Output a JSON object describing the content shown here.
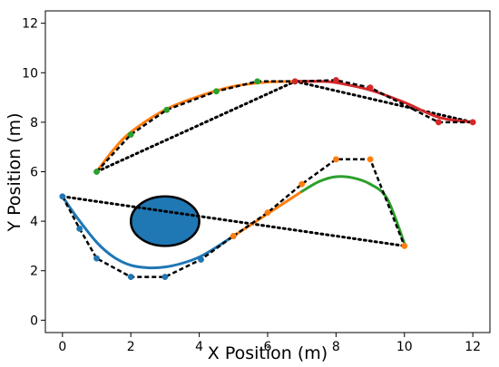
{
  "chart_data": {
    "type": "line",
    "title": "",
    "xlabel": "X Position (m)",
    "ylabel": "Y Position (m)",
    "xlim": [
      -0.5,
      12.5
    ],
    "ylim": [
      -0.5,
      12.5
    ],
    "xticks": [
      0,
      2,
      4,
      6,
      8,
      10,
      12
    ],
    "yticks": [
      0,
      2,
      4,
      6,
      8,
      10,
      12
    ],
    "grid": false,
    "legend": "none",
    "obstacle": {
      "shape": "ellipse",
      "cx": 3.0,
      "cy": 4.0,
      "rx": 1.0,
      "ry": 1.0,
      "color": "#1f77b4"
    },
    "straight_paths": [
      {
        "color": "#000000",
        "style": "dotted",
        "points": [
          [
            0,
            5
          ],
          [
            10,
            3
          ]
        ]
      },
      {
        "color": "#000000",
        "style": "dotted",
        "points": [
          [
            1,
            6
          ],
          [
            6.8,
            9.65
          ],
          [
            12,
            8
          ]
        ]
      }
    ],
    "control_polygons": [
      {
        "color": "#1f77b4",
        "points": [
          [
            0,
            5
          ],
          [
            0.5,
            3.7
          ],
          [
            1,
            2.5
          ],
          [
            2,
            1.75
          ],
          [
            3,
            1.75
          ],
          [
            4.05,
            2.45
          ],
          [
            5,
            3.4
          ]
        ]
      },
      {
        "color": "#ff7f0e",
        "points": [
          [
            5,
            3.4
          ],
          [
            6,
            4.35
          ],
          [
            7,
            5.5
          ],
          [
            8,
            6.5
          ],
          [
            9,
            6.5
          ],
          [
            10,
            3
          ]
        ]
      },
      {
        "color": "#2ca02c",
        "points": [
          [
            1,
            6
          ],
          [
            2,
            7.5
          ],
          [
            3.05,
            8.5
          ],
          [
            4.5,
            9.25
          ],
          [
            5.7,
            9.65
          ],
          [
            6.8,
            9.65
          ]
        ]
      },
      {
        "color": "#d62728",
        "points": [
          [
            6.8,
            9.65
          ],
          [
            8,
            9.7
          ],
          [
            9,
            9.4
          ],
          [
            11,
            8
          ],
          [
            12,
            8
          ]
        ]
      }
    ],
    "series": [
      {
        "color": "#1f77b4",
        "points": [
          [
            0,
            5
          ],
          [
            0.4,
            4.2
          ],
          [
            1,
            3.15
          ],
          [
            1.5,
            2.55
          ],
          [
            2,
            2.22
          ],
          [
            2.5,
            2.12
          ],
          [
            3,
            2.15
          ],
          [
            3.5,
            2.3
          ],
          [
            4,
            2.55
          ],
          [
            4.5,
            2.95
          ],
          [
            5,
            3.4
          ]
        ]
      },
      {
        "color": "#ff7f0e",
        "points": [
          [
            5,
            3.4
          ],
          [
            5.5,
            3.85
          ],
          [
            6,
            4.3
          ],
          [
            6.5,
            4.75
          ],
          [
            7,
            5.2
          ]
        ]
      },
      {
        "color": "#2ca02c",
        "points": [
          [
            7,
            5.2
          ],
          [
            7.5,
            5.6
          ],
          [
            8,
            5.8
          ],
          [
            8.5,
            5.75
          ],
          [
            9,
            5.5
          ],
          [
            9.5,
            4.9
          ],
          [
            10,
            3.1
          ]
        ]
      },
      {
        "color": "#ff7f0e",
        "points": [
          [
            1,
            6
          ],
          [
            1.5,
            6.9
          ],
          [
            2,
            7.6
          ],
          [
            3,
            8.5
          ],
          [
            4,
            9.05
          ],
          [
            5,
            9.45
          ],
          [
            6,
            9.62
          ],
          [
            6.8,
            9.65
          ]
        ]
      },
      {
        "color": "#d62728",
        "points": [
          [
            6.8,
            9.65
          ],
          [
            7.5,
            9.65
          ],
          [
            8,
            9.6
          ],
          [
            9,
            9.3
          ],
          [
            10,
            8.8
          ],
          [
            11,
            8.2
          ],
          [
            12,
            8
          ]
        ]
      }
    ]
  }
}
